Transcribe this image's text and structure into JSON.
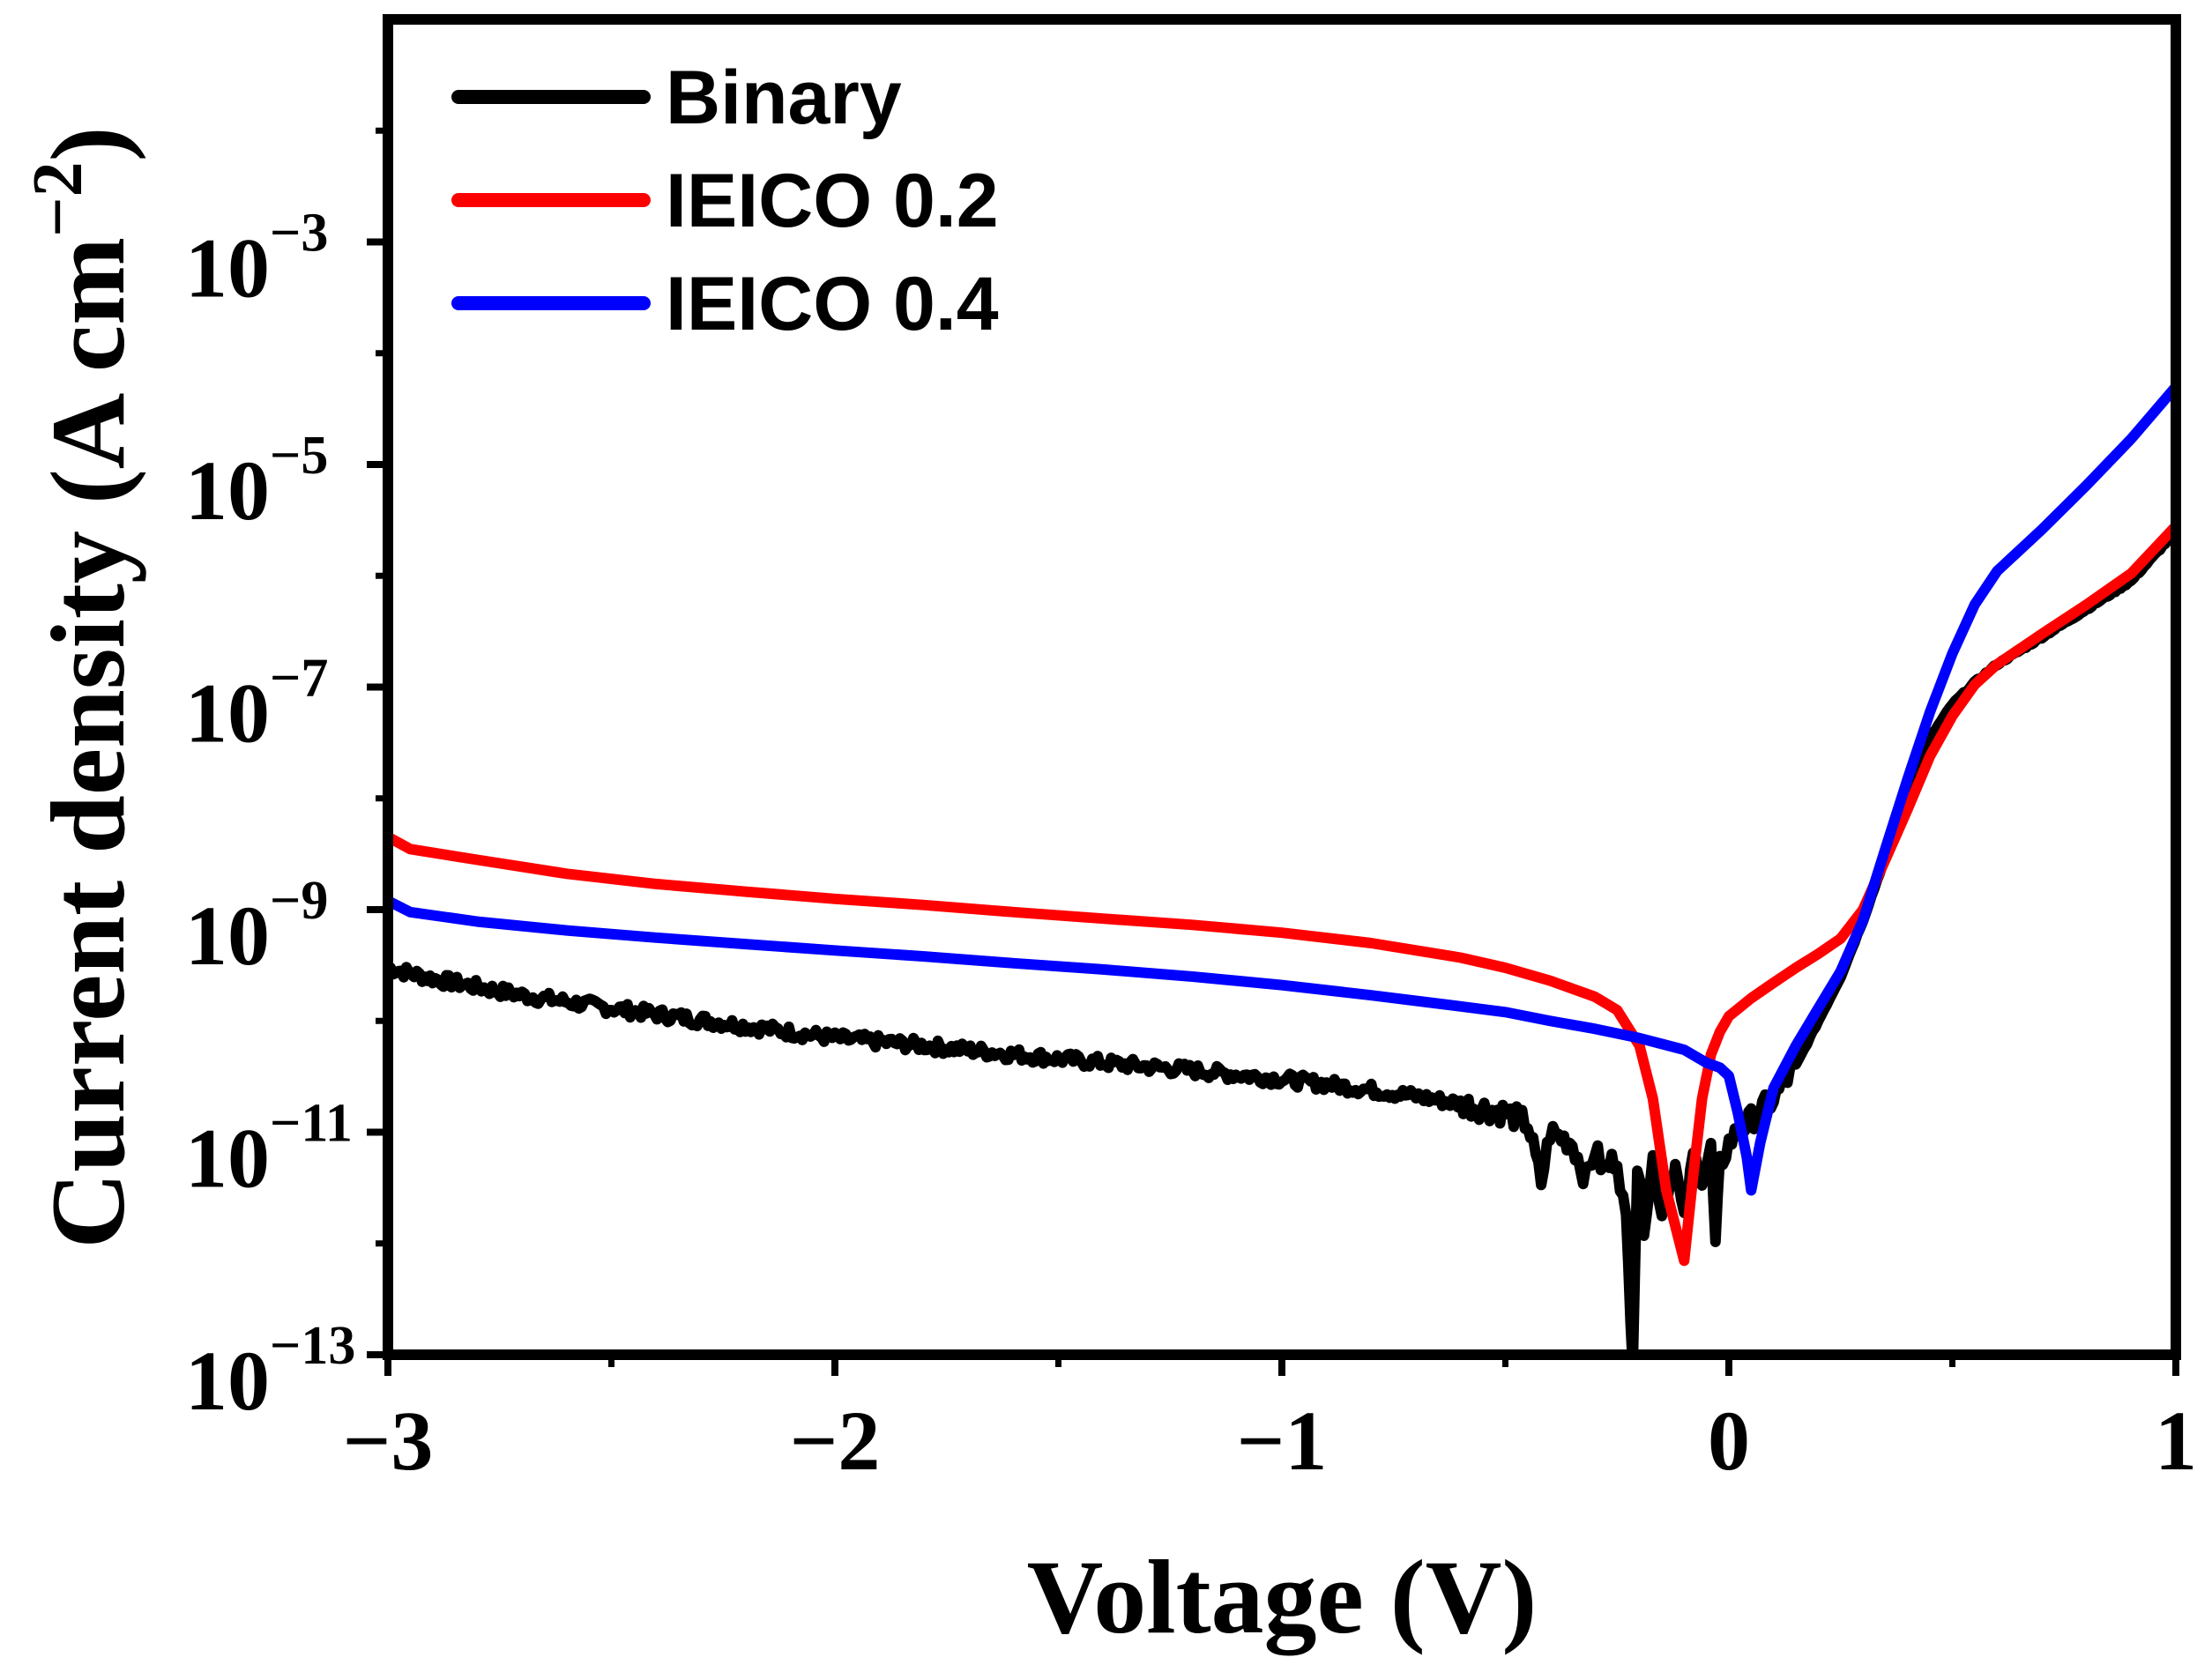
{
  "chart_data": {
    "type": "line",
    "title": "",
    "xlabel": "Voltage (V)",
    "ylabel": {
      "main": "Current density (A cm",
      "exp": "−2",
      "close": ")"
    },
    "xlim": [
      -3,
      1
    ],
    "ylim_log10": [
      -13,
      -1
    ],
    "y_scale": "log",
    "legend_position": "top-left",
    "x_ticks": [
      {
        "value": -3,
        "label": "−3"
      },
      {
        "value": -2,
        "label": "−2"
      },
      {
        "value": -1,
        "label": "−1"
      },
      {
        "value": 0,
        "label": "0"
      },
      {
        "value": 1,
        "label": "1"
      }
    ],
    "y_ticks": [
      {
        "exp": -13,
        "base": "10",
        "sup": "−13"
      },
      {
        "exp": -11,
        "base": "10",
        "sup": "−11"
      },
      {
        "exp": -9,
        "base": "10",
        "sup": "−9"
      },
      {
        "exp": -7,
        "base": "10",
        "sup": "−7"
      },
      {
        "exp": -5,
        "base": "10",
        "sup": "−5"
      },
      {
        "exp": -3,
        "base": "10",
        "sup": "−3"
      }
    ],
    "series": [
      {
        "name": "Binary",
        "color": "#000000",
        "noisy": true,
        "points": [
          [
            -3.0,
            3e-10
          ],
          [
            -2.9,
            2.4e-10
          ],
          [
            -2.7,
            1.7e-10
          ],
          [
            -2.5,
            1.3e-10
          ],
          [
            -2.2,
            9e-11
          ],
          [
            -2.0,
            7e-11
          ],
          [
            -1.8,
            6e-11
          ],
          [
            -1.6,
            5e-11
          ],
          [
            -1.4,
            4.2e-11
          ],
          [
            -1.2,
            3.6e-11
          ],
          [
            -1.0,
            3e-11
          ],
          [
            -0.9,
            2.7e-11
          ],
          [
            -0.8,
            2.4e-11
          ],
          [
            -0.7,
            2.1e-11
          ],
          [
            -0.6,
            1.8e-11
          ],
          [
            -0.5,
            1.5e-11
          ],
          [
            -0.45,
            1.2e-11
          ],
          [
            -0.42,
            3.5e-12
          ],
          [
            -0.4,
            1e-11
          ],
          [
            -0.35,
            8e-12
          ],
          [
            -0.32,
            3.8e-12
          ],
          [
            -0.3,
            7e-12
          ],
          [
            -0.28,
            4.5e-12
          ],
          [
            -0.25,
            6e-12
          ],
          [
            -0.23,
            1.5e-12
          ],
          [
            -0.215,
            1e-13
          ],
          [
            -0.205,
            5e-12
          ],
          [
            -0.19,
            1.5e-12
          ],
          [
            -0.17,
            6e-12
          ],
          [
            -0.15,
            2e-12
          ],
          [
            -0.12,
            5e-12
          ],
          [
            -0.1,
            1.5e-12
          ],
          [
            -0.08,
            6e-12
          ],
          [
            -0.06,
            4e-12
          ],
          [
            -0.04,
            7e-12
          ],
          [
            -0.03,
            9e-13
          ],
          [
            -0.02,
            5e-12
          ],
          [
            0.0,
            8e-12
          ],
          [
            0.02,
            1e-11
          ],
          [
            0.05,
            1.3e-11
          ],
          [
            0.1,
            2e-11
          ],
          [
            0.15,
            4e-11
          ],
          [
            0.2,
            1e-10
          ],
          [
            0.25,
            2.5e-10
          ],
          [
            0.3,
            8e-10
          ],
          [
            0.35,
            3e-09
          ],
          [
            0.4,
            1.2e-08
          ],
          [
            0.45,
            3.5e-08
          ],
          [
            0.5,
            7e-08
          ],
          [
            0.55,
            1.1e-07
          ],
          [
            0.6,
            1.6e-07
          ],
          [
            0.7,
            2.8e-07
          ],
          [
            0.8,
            5e-07
          ],
          [
            0.9,
            9e-07
          ],
          [
            1.0,
            2.5e-06
          ]
        ]
      },
      {
        "name": "IEICO 0.2",
        "color": "#ff0000",
        "noisy": false,
        "points": [
          [
            -3.0,
            4.5e-09
          ],
          [
            -2.95,
            3.5e-09
          ],
          [
            -2.8,
            2.8e-09
          ],
          [
            -2.6,
            2.1e-09
          ],
          [
            -2.4,
            1.7e-09
          ],
          [
            -2.2,
            1.45e-09
          ],
          [
            -2.0,
            1.25e-09
          ],
          [
            -1.8,
            1.1e-09
          ],
          [
            -1.6,
            9.5e-10
          ],
          [
            -1.4,
            8.3e-10
          ],
          [
            -1.2,
            7.3e-10
          ],
          [
            -1.0,
            6.2e-10
          ],
          [
            -0.8,
            5e-10
          ],
          [
            -0.6,
            3.7e-10
          ],
          [
            -0.5,
            3e-10
          ],
          [
            -0.4,
            2.3e-10
          ],
          [
            -0.3,
            1.65e-10
          ],
          [
            -0.25,
            1.25e-10
          ],
          [
            -0.2,
            6e-11
          ],
          [
            -0.17,
            2e-11
          ],
          [
            -0.14,
            3e-12
          ],
          [
            -0.1,
            7e-13
          ],
          [
            -0.08,
            4e-12
          ],
          [
            -0.06,
            2e-11
          ],
          [
            -0.04,
            5e-11
          ],
          [
            -0.02,
            8e-11
          ],
          [
            0.0,
            1.1e-10
          ],
          [
            0.05,
            1.6e-10
          ],
          [
            0.1,
            2.2e-10
          ],
          [
            0.15,
            3e-10
          ],
          [
            0.2,
            4e-10
          ],
          [
            0.25,
            5.5e-10
          ],
          [
            0.3,
            1e-09
          ],
          [
            0.35,
            2.8e-09
          ],
          [
            0.4,
            8e-09
          ],
          [
            0.45,
            2.4e-08
          ],
          [
            0.5,
            5.5e-08
          ],
          [
            0.55,
            1.05e-07
          ],
          [
            0.6,
            1.6e-07
          ],
          [
            0.7,
            3e-07
          ],
          [
            0.8,
            5.5e-07
          ],
          [
            0.9,
            1.05e-06
          ],
          [
            1.0,
            2.8e-06
          ]
        ]
      },
      {
        "name": "IEICO 0.4",
        "color": "#0000ff",
        "noisy": false,
        "points": [
          [
            -3.0,
            1.2e-09
          ],
          [
            -2.95,
            9.5e-10
          ],
          [
            -2.8,
            7.8e-10
          ],
          [
            -2.6,
            6.5e-10
          ],
          [
            -2.4,
            5.6e-10
          ],
          [
            -2.2,
            4.9e-10
          ],
          [
            -2.0,
            4.3e-10
          ],
          [
            -1.8,
            3.8e-10
          ],
          [
            -1.6,
            3.3e-10
          ],
          [
            -1.4,
            2.9e-10
          ],
          [
            -1.2,
            2.5e-10
          ],
          [
            -1.0,
            2.1e-10
          ],
          [
            -0.8,
            1.7e-10
          ],
          [
            -0.6,
            1.35e-10
          ],
          [
            -0.5,
            1.2e-10
          ],
          [
            -0.4,
            1e-10
          ],
          [
            -0.3,
            8.5e-11
          ],
          [
            -0.2,
            7e-11
          ],
          [
            -0.1,
            5.5e-11
          ],
          [
            -0.05,
            4.2e-11
          ],
          [
            -0.02,
            3.8e-11
          ],
          [
            0.0,
            3.2e-11
          ],
          [
            0.02,
            1.5e-11
          ],
          [
            0.04,
            6e-12
          ],
          [
            0.05,
            3e-12
          ],
          [
            0.07,
            8e-12
          ],
          [
            0.1,
            2.5e-11
          ],
          [
            0.15,
            6e-11
          ],
          [
            0.2,
            1.3e-10
          ],
          [
            0.25,
            2.8e-10
          ],
          [
            0.3,
            8e-10
          ],
          [
            0.35,
            3.5e-09
          ],
          [
            0.4,
            1.5e-08
          ],
          [
            0.45,
            6e-08
          ],
          [
            0.5,
            2e-07
          ],
          [
            0.55,
            5.5e-07
          ],
          [
            0.6,
            1.1e-06
          ],
          [
            0.7,
            2.6e-06
          ],
          [
            0.8,
            6.5e-06
          ],
          [
            0.9,
            1.7e-05
          ],
          [
            1.0,
            5e-05
          ]
        ]
      }
    ]
  }
}
